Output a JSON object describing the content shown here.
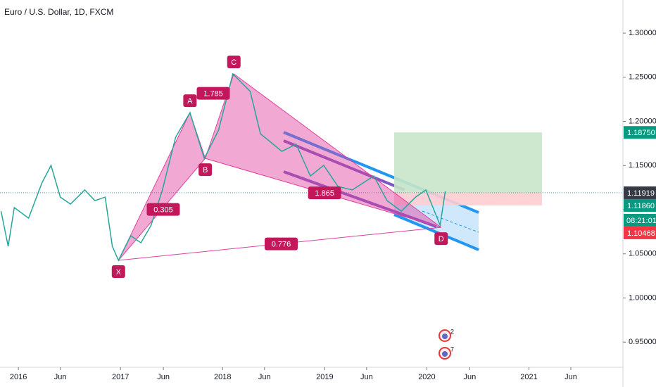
{
  "chart_data": {
    "type": "line",
    "title": "Euro / U.S. Dollar, 1D, FXCM",
    "x": [
      2015.83,
      2015.9,
      2015.96,
      2016.1,
      2016.23,
      2016.32,
      2016.41,
      2016.51,
      2016.65,
      2016.75,
      2016.85,
      2016.92,
      2016.98,
      2017.1,
      2017.2,
      2017.3,
      2017.41,
      2017.54,
      2017.68,
      2017.82,
      2017.96,
      2018.1,
      2018.27,
      2018.37,
      2018.58,
      2018.72,
      2018.86,
      2018.99,
      2019.13,
      2019.27,
      2019.48,
      2019.61,
      2019.75,
      2019.89,
      2019.99,
      2020.13,
      2020.18
    ],
    "values": [
      1.0983,
      1.0585,
      1.1024,
      1.0904,
      1.1302,
      1.1502,
      1.1143,
      1.1064,
      1.1223,
      1.1103,
      1.1143,
      1.0585,
      1.0426,
      1.0705,
      1.0625,
      1.0824,
      1.1223,
      1.182,
      1.2099,
      1.1581,
      1.19,
      1.2538,
      1.2339,
      1.186,
      1.1661,
      1.1741,
      1.1382,
      1.1502,
      1.1263,
      1.1223,
      1.1382,
      1.1103,
      1.0983,
      1.1143,
      1.1223,
      1.0824,
      1.1207
    ],
    "color": "#26a69a",
    "xlim": [
      2015.82,
      2021.92
    ],
    "xticks": [
      2016,
      {
        "value": 2016.41,
        "label": "Jun"
      },
      2017,
      {
        "value": 2017.42,
        "label": "Jun"
      },
      2018,
      {
        "value": 2018.41,
        "label": "Jun"
      },
      2019,
      {
        "value": 2019.41,
        "label": "Jun"
      },
      2020,
      {
        "value": 2020.42,
        "label": "Jun"
      },
      2021,
      {
        "value": 2021.41,
        "label": "Jun"
      }
    ],
    "ylim": [
      0.9215,
      1.3375
    ],
    "yticks": [
      {
        "value": 0.95,
        "label": "0.95000"
      },
      {
        "value": 1.0,
        "label": "1.00000"
      },
      {
        "value": 1.05,
        "label": "1.05000"
      },
      {
        "value": 1.1,
        "label": "1.10000"
      },
      {
        "value": 1.15,
        "label": "1.15000"
      },
      {
        "value": 1.2,
        "label": "1.20000"
      },
      {
        "value": 1.25,
        "label": "1.25000"
      },
      {
        "value": 1.3,
        "label": "1.30000"
      }
    ],
    "pattern": {
      "color": "#e040a0",
      "points": [
        {
          "label": "X",
          "x": 2016.98,
          "value": 1.0426
        },
        {
          "label": "A",
          "x": 2017.68,
          "value": 1.2099
        },
        {
          "label": "B",
          "x": 2017.83,
          "value": 1.1581
        },
        {
          "label": "C",
          "x": 2018.11,
          "value": 1.2538
        },
        {
          "label": "D",
          "x": 2020.14,
          "value": 1.08
        }
      ],
      "ratios": [
        "1.785",
        "0.305",
        "1.865",
        "0.776"
      ]
    },
    "price_labels": [
      {
        "value": 1.1875,
        "label": "1.18750",
        "color": "#089981"
      },
      {
        "value": 1.11919,
        "label": "1.11919",
        "color": "#363a45"
      },
      {
        "value": 1.1186,
        "label": "1.11860",
        "color": "#089981"
      },
      {
        "value": 1.10468,
        "label": "1.10468",
        "color": "#f23645"
      }
    ],
    "countdown": "08:21:01",
    "events": [
      "2",
      "7"
    ]
  }
}
